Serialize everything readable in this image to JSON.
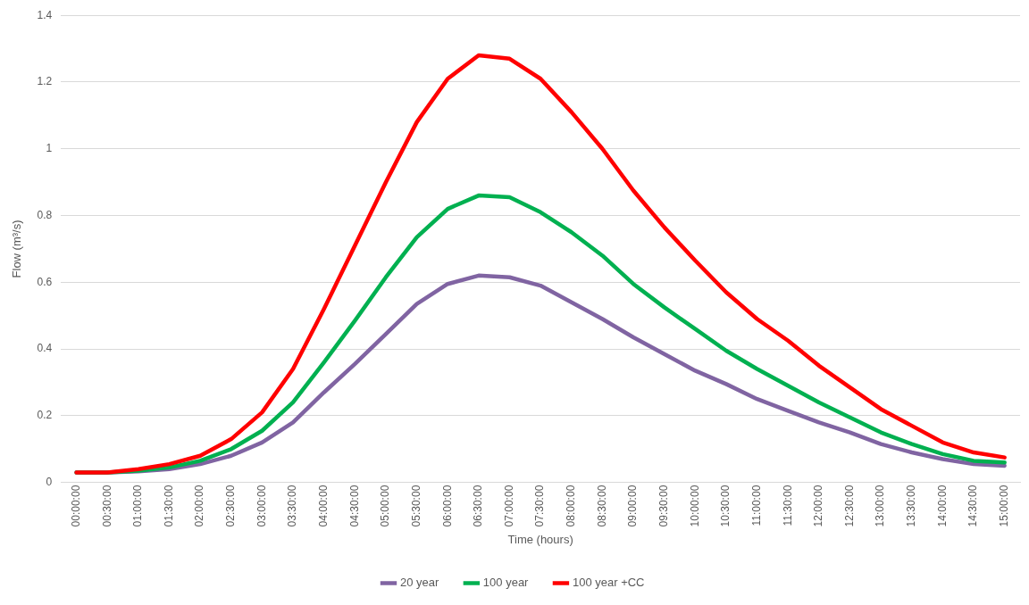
{
  "chart_data": {
    "type": "line",
    "xlabel": "Time (hours)",
    "ylabel": "Flow (m³/s)",
    "categories": [
      "00:00:00",
      "00:30:00",
      "01:00:00",
      "01:30:00",
      "02:00:00",
      "02:30:00",
      "03:00:00",
      "03:30:00",
      "04:00:00",
      "04:30:00",
      "05:00:00",
      "05:30:00",
      "06:00:00",
      "06:30:00",
      "07:00:00",
      "07:30:00",
      "08:00:00",
      "08:30:00",
      "09:00:00",
      "09:30:00",
      "10:00:00",
      "10:30:00",
      "11:00:00",
      "11:30:00",
      "12:00:00",
      "12:30:00",
      "13:00:00",
      "13:30:00",
      "14:00:00",
      "14:30:00",
      "15:00:00"
    ],
    "series": [
      {
        "name": "20 year",
        "color": "#8064a2",
        "values": [
          0.03,
          0.03,
          0.033,
          0.04,
          0.055,
          0.08,
          0.12,
          0.18,
          0.27,
          0.355,
          0.445,
          0.535,
          0.595,
          0.62,
          0.615,
          0.59,
          0.54,
          0.49,
          0.435,
          0.385,
          0.335,
          0.295,
          0.25,
          0.215,
          0.18,
          0.15,
          0.115,
          0.09,
          0.07,
          0.055,
          0.05
        ]
      },
      {
        "name": "100 year",
        "color": "#00b050",
        "values": [
          0.03,
          0.03,
          0.035,
          0.045,
          0.065,
          0.1,
          0.155,
          0.24,
          0.36,
          0.485,
          0.615,
          0.735,
          0.82,
          0.86,
          0.855,
          0.81,
          0.75,
          0.68,
          0.595,
          0.525,
          0.46,
          0.395,
          0.34,
          0.29,
          0.24,
          0.195,
          0.15,
          0.115,
          0.085,
          0.065,
          0.06
        ]
      },
      {
        "name": "100 year +CC",
        "color": "#ff0000",
        "values": [
          0.03,
          0.03,
          0.04,
          0.055,
          0.08,
          0.13,
          0.21,
          0.34,
          0.52,
          0.71,
          0.9,
          1.08,
          1.21,
          1.28,
          1.27,
          1.21,
          1.11,
          1.0,
          0.875,
          0.765,
          0.665,
          0.57,
          0.49,
          0.425,
          0.35,
          0.285,
          0.22,
          0.17,
          0.12,
          0.09,
          0.075
        ]
      }
    ],
    "ylim": [
      0,
      1.4
    ],
    "yticks": [
      0,
      0.2,
      0.4,
      0.6,
      0.8,
      1,
      1.2,
      1.4
    ],
    "grid": "y",
    "legend": "bottom",
    "marker": "none",
    "line_style": "solid"
  }
}
